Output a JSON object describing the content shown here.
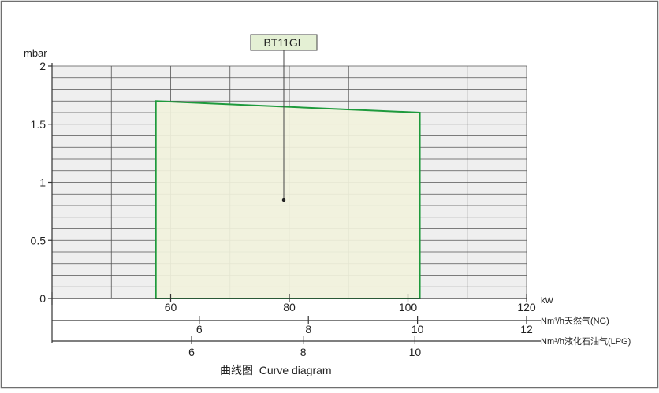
{
  "chart_data": {
    "type": "area",
    "title": "曲线图  Curve diagram",
    "ylabel": "mbar",
    "ylim": [
      0,
      2
    ],
    "y_ticks": [
      "0",
      "0.5",
      "1",
      "1.5",
      "2"
    ],
    "y_tick_values": [
      0,
      0.5,
      1,
      1.5,
      2
    ],
    "xlim": [
      40,
      120
    ],
    "grid": true,
    "legend": "none",
    "series": [
      {
        "name": "BT11GL",
        "x": [
          57.5,
          57.5,
          102,
          102
        ],
        "y": [
          0,
          1.7,
          1.6,
          0
        ],
        "color": "#1e9a3c",
        "fill": "#f1f2dc"
      }
    ],
    "x_axes": [
      {
        "label": "kW",
        "ticks": [
          "60",
          "80",
          "100",
          "120"
        ],
        "values": [
          60,
          80,
          100,
          120
        ]
      },
      {
        "label": "Nm³/h天然气(NG)",
        "ticks": [
          "6",
          "8",
          "10",
          "12"
        ],
        "values": [
          6,
          8,
          10,
          12
        ]
      },
      {
        "label": "Nm³/h液化石油气(LPG)",
        "ticks": [
          "6",
          "8",
          "10"
        ],
        "values": [
          6,
          8,
          10
        ]
      }
    ]
  }
}
